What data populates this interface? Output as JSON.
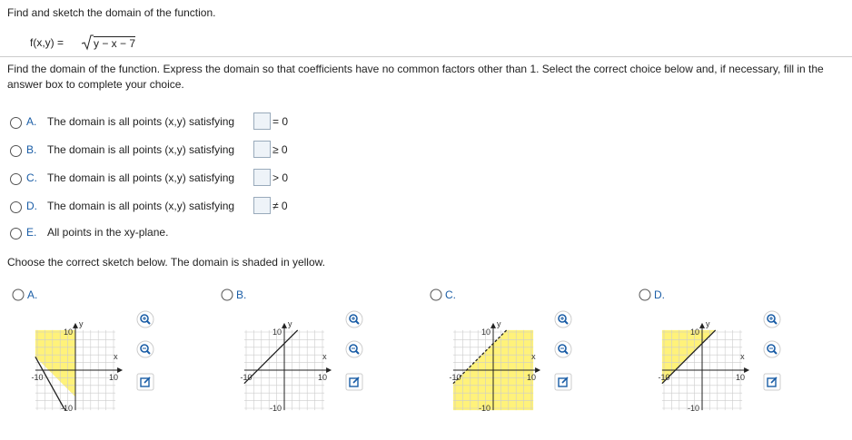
{
  "question": {
    "title": "Find and sketch the domain of the function.",
    "function_lhs": "f(x,y) =",
    "function_radicand": "y − x − 7"
  },
  "part1": {
    "instructions": "Find the domain of the function. Express the domain so that coefficients have no common factors other than 1. Select the correct choice below and, if necessary, fill in the answer box to complete your choice.",
    "choices": [
      {
        "letter": "A.",
        "text": "The domain is all points (x,y) satisfying",
        "relation": "= 0"
      },
      {
        "letter": "B.",
        "text": "The domain is all points (x,y) satisfying",
        "relation": "≥ 0"
      },
      {
        "letter": "C.",
        "text": "The domain is all points (x,y) satisfying",
        "relation": "> 0"
      },
      {
        "letter": "D.",
        "text": "The domain is all points (x,y) satisfying",
        "relation": "≠ 0"
      },
      {
        "letter": "E.",
        "text": "All points in the xy-plane."
      }
    ]
  },
  "part2": {
    "instructions": "Choose the correct sketch below. The domain is shaded in yellow.",
    "choices": [
      {
        "letter": "A."
      },
      {
        "letter": "B."
      },
      {
        "letter": "C."
      },
      {
        "letter": "D."
      }
    ],
    "axes": {
      "y_label": "y",
      "x_label": "x",
      "y_max": "10",
      "x_min": "-10",
      "x_max": "10",
      "y_min": "-10"
    }
  }
}
